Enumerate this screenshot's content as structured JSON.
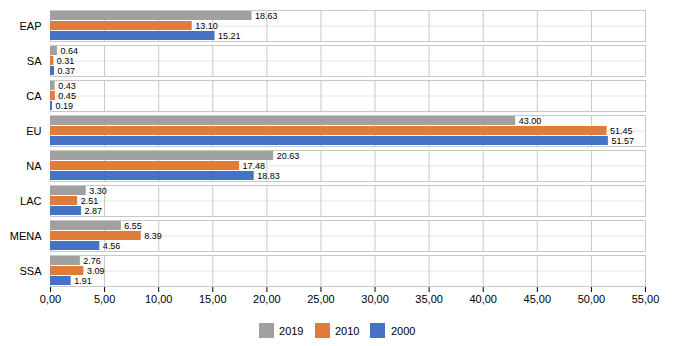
{
  "chart_data": {
    "type": "bar",
    "orientation": "horizontal",
    "categories": [
      "EAP",
      "SA",
      "CA",
      "EU",
      "NA",
      "LAC",
      "MENA",
      "SSA"
    ],
    "series": [
      {
        "name": "2019",
        "color": "#A0A0A0",
        "values": [
          18.63,
          0.64,
          0.43,
          43.0,
          20.63,
          3.3,
          6.55,
          2.76
        ],
        "value_labels": [
          "18.63",
          "0.64",
          "0.43",
          "43.00",
          "20.63",
          "3.30",
          "6.55",
          "2.76"
        ]
      },
      {
        "name": "2010",
        "color": "#E07B39",
        "values": [
          13.1,
          0.31,
          0.45,
          51.45,
          17.48,
          2.51,
          8.39,
          3.09
        ],
        "value_labels": [
          "13.10",
          "0.31",
          "0.45",
          "51.45",
          "17.48",
          "2.51",
          "8.39",
          "3.09"
        ]
      },
      {
        "name": "2000",
        "color": "#4472C4",
        "values": [
          15.21,
          0.37,
          0.19,
          51.57,
          18.83,
          2.87,
          4.56,
          1.91
        ],
        "value_labels": [
          "15.21",
          "0.37",
          "0.19",
          "51.57",
          "18.83",
          "2.87",
          "4.56",
          "1.91"
        ]
      }
    ],
    "xlim": [
      0,
      55
    ],
    "xticks": [
      {
        "value": 0,
        "label": "0,00"
      },
      {
        "value": 5,
        "label": "5,00"
      },
      {
        "value": 10,
        "label": "10,00"
      },
      {
        "value": 15,
        "label": "15,00"
      },
      {
        "value": 20,
        "label": "20,00"
      },
      {
        "value": 25,
        "label": "25,00"
      },
      {
        "value": 30,
        "label": "30,00"
      },
      {
        "value": 35,
        "label": "35,00"
      },
      {
        "value": 40,
        "label": "40,00"
      },
      {
        "value": 45,
        "label": "45,00"
      },
      {
        "value": 50,
        "label": "50,00"
      },
      {
        "value": 55,
        "label": "55,00"
      }
    ],
    "grid": true,
    "data_labels": true,
    "legend": "bottom"
  }
}
